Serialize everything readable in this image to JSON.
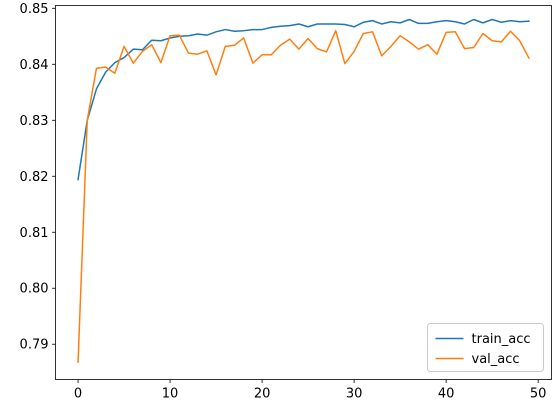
{
  "chart_data": {
    "type": "line",
    "title": "",
    "xlabel": "",
    "ylabel": "",
    "xlim": [
      -2.45,
      51.45
    ],
    "ylim": [
      0.7837,
      0.8505
    ],
    "grid": false,
    "legend_position": "lower-right",
    "x_ticks": [
      0,
      10,
      20,
      30,
      40,
      50
    ],
    "x_tick_labels": [
      "0",
      "10",
      "20",
      "30",
      "40",
      "50"
    ],
    "y_ticks": [
      0.79,
      0.8,
      0.81,
      0.82,
      0.83,
      0.84,
      0.85
    ],
    "y_tick_labels": [
      "0.79",
      "0.80",
      "0.81",
      "0.82",
      "0.83",
      "0.84",
      "0.85"
    ],
    "x": [
      0,
      1,
      2,
      3,
      4,
      5,
      6,
      7,
      8,
      9,
      10,
      11,
      12,
      13,
      14,
      15,
      16,
      17,
      18,
      19,
      20,
      21,
      22,
      23,
      24,
      25,
      26,
      27,
      28,
      29,
      30,
      31,
      32,
      33,
      34,
      35,
      36,
      37,
      38,
      39,
      40,
      41,
      42,
      43,
      44,
      45,
      46,
      47,
      48,
      49
    ],
    "series": [
      {
        "name": "train_acc",
        "color": "#1f77b4",
        "values": [
          0.8194,
          0.83,
          0.8356,
          0.8386,
          0.8403,
          0.8412,
          0.8427,
          0.8426,
          0.8443,
          0.8442,
          0.8447,
          0.845,
          0.8451,
          0.8454,
          0.8452,
          0.8458,
          0.8462,
          0.8459,
          0.846,
          0.8462,
          0.8462,
          0.8466,
          0.8468,
          0.8469,
          0.8472,
          0.8467,
          0.8472,
          0.8472,
          0.8472,
          0.8471,
          0.8467,
          0.8475,
          0.8478,
          0.8472,
          0.8476,
          0.8474,
          0.848,
          0.8473,
          0.8473,
          0.8476,
          0.8478,
          0.8476,
          0.8472,
          0.848,
          0.8474,
          0.848,
          0.8475,
          0.8478,
          0.8476,
          0.8477
        ]
      },
      {
        "name": "val_acc",
        "color": "#ff7f0e",
        "values": [
          0.7868,
          0.83,
          0.8393,
          0.8395,
          0.8384,
          0.8432,
          0.8402,
          0.8423,
          0.8435,
          0.8403,
          0.8451,
          0.8452,
          0.842,
          0.8418,
          0.8424,
          0.8381,
          0.8432,
          0.8434,
          0.8447,
          0.8402,
          0.8417,
          0.8417,
          0.8434,
          0.8445,
          0.8427,
          0.8446,
          0.8428,
          0.8422,
          0.846,
          0.8401,
          0.8423,
          0.8455,
          0.8458,
          0.8415,
          0.8432,
          0.8451,
          0.844,
          0.8427,
          0.8435,
          0.8418,
          0.8457,
          0.8458,
          0.8428,
          0.843,
          0.8455,
          0.8442,
          0.844,
          0.8459,
          0.8442,
          0.8411
        ]
      }
    ]
  }
}
